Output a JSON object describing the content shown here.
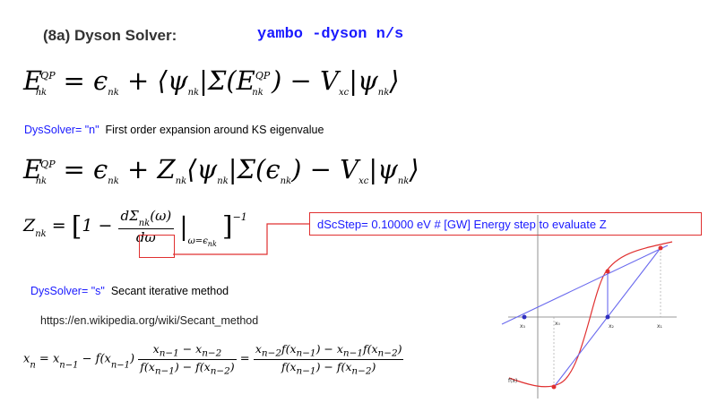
{
  "header": {
    "title": "(8a) Dyson Solver:",
    "command": "yambo -dyson n/s"
  },
  "equations": {
    "qp_full": "E^{QP}_{nk} = ε_{nk} + ⟨ψ_{nk}|Σ(E^{QP}_{nk}) − V_{xc}|ψ_{nk}⟩",
    "qp_linear": "E^{QP}_{nk} = ε_{nk} + Z_{nk}⟨ψ_{nk}|Σ(ε_{nk}) − V_{xc}|ψ_{nk}⟩",
    "z_factor": "Z_{nk} = [1 − dΣ_{nk}(ω)/dω |_{ω=ε_{nk}}]^{−1}",
    "secant": "x_n = x_{n−1} − f(x_{n−1}) (x_{n−1} − x_{n−2})/(f(x_{n−1}) − f(x_{n−2})) = (x_{n−2} f(x_{n−1}) − x_{n−1} f(x_{n−2}))/(f(x_{n−1}) − f(x_{n−2}))"
  },
  "notes": {
    "n_key": "DysSolver= \"n\"",
    "n_desc": "First order expansion around KS eigenvalue",
    "s_key": "DysSolver= \"s\"",
    "s_desc": "Secant iterative method",
    "url": "https://en.wikipedia.org/wiki/Secant_method"
  },
  "dscstep": {
    "text": "dScStep=  0.10000   eV    # [GW] Energy step to evaluate Z"
  },
  "diagram": {
    "labels": [
      "x3",
      "x0",
      "x2",
      "x1",
      "f(x)"
    ],
    "colors": {
      "curve": "#e03030",
      "secant": "#6a6aee",
      "points": "#e03030",
      "roots": "#3030c0"
    }
  }
}
